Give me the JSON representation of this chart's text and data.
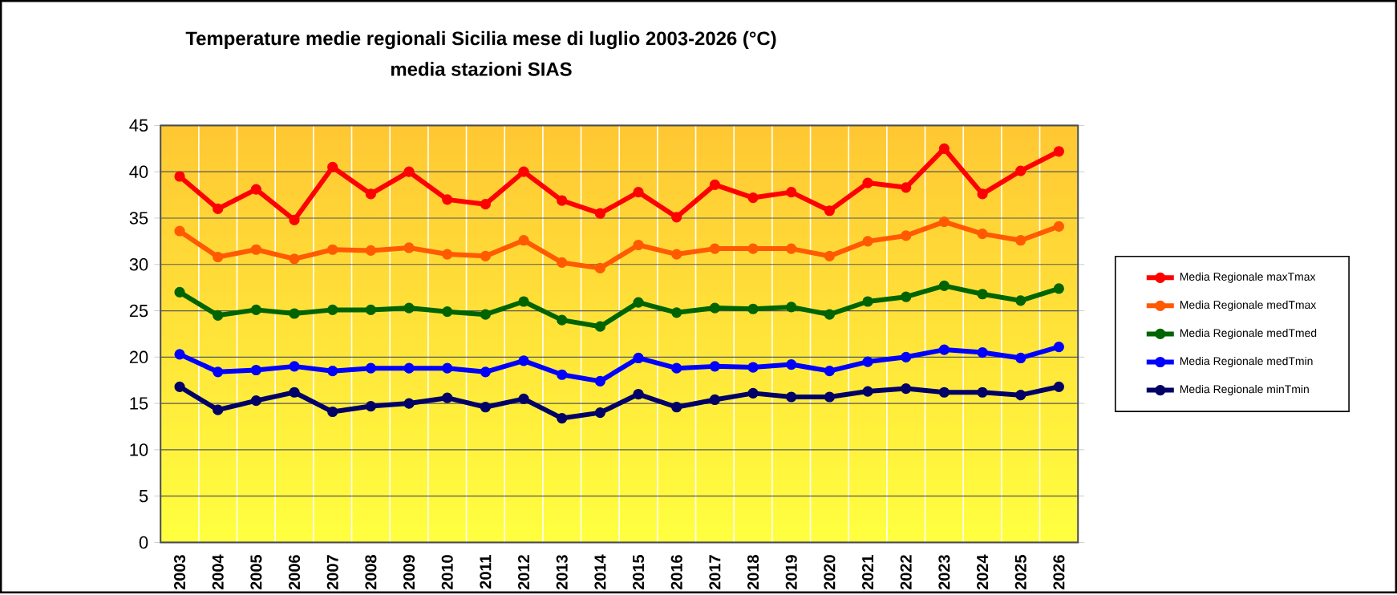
{
  "chart_data": {
    "type": "line",
    "title": "Temperature medie regionali Sicilia mese di luglio 2003-2026 (°C)",
    "subtitle": "media stazioni SIAS",
    "categories": [
      "2003",
      "2004",
      "2005",
      "2006",
      "2007",
      "2008",
      "2009",
      "2010",
      "2011",
      "2012",
      "2013",
      "2014",
      "2015",
      "2016",
      "2017",
      "2018",
      "2019",
      "2020",
      "2021",
      "2022",
      "2023",
      "2024",
      "2025",
      "2026"
    ],
    "series": [
      {
        "name": "Media Regionale maxTmax",
        "color": "#ff0000",
        "values": [
          39.5,
          36,
          38.1,
          34.8,
          40.5,
          37.6,
          40,
          37,
          36.5,
          40,
          36.9,
          35.5,
          37.8,
          35.1,
          38.6,
          37.2,
          37.8,
          35.8,
          38.8,
          38.3,
          42.5,
          37.6,
          40.1,
          42.2
        ]
      },
      {
        "name": "Media Regionale medTmax",
        "color": "#ff5a00",
        "values": [
          33.6,
          30.8,
          31.6,
          30.6,
          31.6,
          31.5,
          31.8,
          31.1,
          30.9,
          32.6,
          30.2,
          29.6,
          32.1,
          31.1,
          31.7,
          31.7,
          31.7,
          30.9,
          32.5,
          33.1,
          34.6,
          33.3,
          32.6,
          34.1
        ]
      },
      {
        "name": "Media Regionale medTmed",
        "color": "#006400",
        "values": [
          27,
          24.5,
          25.1,
          24.7,
          25.1,
          25.1,
          25.3,
          24.9,
          24.6,
          26,
          24,
          23.3,
          25.9,
          24.8,
          25.3,
          25.2,
          25.4,
          24.6,
          26,
          26.5,
          27.7,
          26.8,
          26.1,
          27.4
        ]
      },
      {
        "name": "Media Regionale medTmin",
        "color": "#0000ff",
        "values": [
          20.3,
          18.4,
          18.6,
          19,
          18.5,
          18.8,
          18.8,
          18.8,
          18.4,
          19.6,
          18.1,
          17.4,
          19.9,
          18.8,
          19,
          18.9,
          19.2,
          18.5,
          19.5,
          20,
          20.8,
          20.5,
          19.9,
          21.1
        ]
      },
      {
        "name": "Media Regionale minTmin",
        "color": "#000066",
        "values": [
          16.8,
          14.3,
          15.3,
          16.2,
          14.1,
          14.7,
          15,
          15.6,
          14.6,
          15.5,
          13.4,
          14,
          16,
          14.6,
          15.4,
          16.1,
          15.7,
          15.7,
          16.3,
          16.6,
          16.2,
          16.2,
          15.9,
          16.8
        ]
      }
    ],
    "ylim": [
      0,
      45
    ],
    "yticks": [
      0,
      5,
      10,
      15,
      20,
      25,
      30,
      35,
      40,
      45
    ],
    "grid": true,
    "legend": "right",
    "marker": "circle",
    "line_style": "solid"
  }
}
